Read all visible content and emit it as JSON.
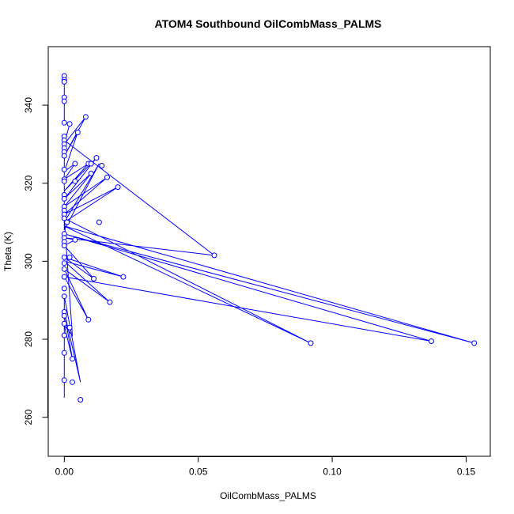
{
  "chart_data": {
    "type": "line",
    "title": "ATOM4 Southbound OilCombMass_PALMS",
    "xlabel": "OilCombMass_PALMS",
    "ylabel": "Theta (K)",
    "xlim": [
      -0.006,
      0.159
    ],
    "ylim": [
      250,
      355
    ],
    "x_ticks": [
      0.0,
      0.05,
      0.1,
      0.15
    ],
    "x_tick_labels": [
      "0.00",
      "0.05",
      "0.10",
      "0.15"
    ],
    "y_ticks": [
      260,
      280,
      300,
      320,
      340
    ],
    "y_tick_labels": [
      "260",
      "280",
      "300",
      "320",
      "340"
    ],
    "grid": false,
    "series_color": "#0000ff",
    "series": [
      {
        "x": [
          0.0,
          0.0,
          0.0,
          0.0,
          0.002,
          0.0,
          0.008,
          0.0,
          0.005,
          0.0,
          0.004,
          0.0,
          0.009,
          0.0,
          0.012,
          0.0,
          0.01,
          0.0,
          0.016,
          0.0,
          0.02,
          0.0,
          0.013,
          0.0,
          0.0,
          0.056,
          0.0,
          0.004,
          0.0,
          0.011,
          0.0,
          0.022,
          0.0,
          0.017,
          0.0,
          0.009,
          0.0,
          0.137,
          0.0,
          0.153,
          0.0,
          0.092,
          0.0,
          0.003,
          0.0,
          0.003,
          0.0,
          0.006,
          0.0,
          0.0,
          0.0
        ],
        "y": [
          347.5,
          346.0,
          342.0,
          335.5,
          335.2,
          330.0,
          337.0,
          327.0,
          333.0,
          323.0,
          325.0,
          321.0,
          325.0,
          318.0,
          326.5,
          316.0,
          322.5,
          314.0,
          321.5,
          312.0,
          319.0,
          310.0,
          325.0,
          308.0,
          331.0,
          301.5,
          306.0,
          305.5,
          304.0,
          295.5,
          301.0,
          296.0,
          300.0,
          289.5,
          298.0,
          285.0,
          296.0,
          279.5,
          307.0,
          279.0,
          309.0,
          279.0,
          311.0,
          281.0,
          283.5,
          275.0,
          287.0,
          269.0,
          291.0,
          269.5,
          265.0
        ]
      }
    ],
    "markers": [
      {
        "x": 0.0,
        "y": 347.5
      },
      {
        "x": 0.0,
        "y": 346.5
      },
      {
        "x": 0.0,
        "y": 346.0
      },
      {
        "x": 0.0,
        "y": 342.0
      },
      {
        "x": 0.0,
        "y": 341.0
      },
      {
        "x": 0.0,
        "y": 335.5
      },
      {
        "x": 0.0,
        "y": 332.0
      },
      {
        "x": 0.0,
        "y": 331.0
      },
      {
        "x": 0.0,
        "y": 330.0
      },
      {
        "x": 0.0,
        "y": 329.0
      },
      {
        "x": 0.0,
        "y": 328.0
      },
      {
        "x": 0.0,
        "y": 327.0
      },
      {
        "x": 0.0,
        "y": 323.5
      },
      {
        "x": 0.0,
        "y": 321.0
      },
      {
        "x": 0.0,
        "y": 320.5
      },
      {
        "x": 0.0,
        "y": 317.0
      },
      {
        "x": 0.0,
        "y": 316.0
      },
      {
        "x": 0.0,
        "y": 314.0
      },
      {
        "x": 0.0,
        "y": 313.0
      },
      {
        "x": 0.0,
        "y": 312.0
      },
      {
        "x": 0.0,
        "y": 311.0
      },
      {
        "x": 0.0,
        "y": 307.0
      },
      {
        "x": 0.0,
        "y": 306.0
      },
      {
        "x": 0.0,
        "y": 305.0
      },
      {
        "x": 0.0,
        "y": 304.0
      },
      {
        "x": 0.0,
        "y": 301.0
      },
      {
        "x": 0.0,
        "y": 299.5
      },
      {
        "x": 0.0,
        "y": 298.0
      },
      {
        "x": 0.0,
        "y": 296.0
      },
      {
        "x": 0.0,
        "y": 293.0
      },
      {
        "x": 0.0,
        "y": 291.0
      },
      {
        "x": 0.0,
        "y": 287.0
      },
      {
        "x": 0.0,
        "y": 286.0
      },
      {
        "x": 0.0,
        "y": 284.0
      },
      {
        "x": 0.0,
        "y": 281.0
      },
      {
        "x": 0.0,
        "y": 276.5
      },
      {
        "x": 0.0,
        "y": 269.5
      },
      {
        "x": 0.002,
        "y": 335.2
      },
      {
        "x": 0.008,
        "y": 337.0
      },
      {
        "x": 0.005,
        "y": 333.0
      },
      {
        "x": 0.004,
        "y": 325.0
      },
      {
        "x": 0.009,
        "y": 325.0
      },
      {
        "x": 0.01,
        "y": 325.0
      },
      {
        "x": 0.012,
        "y": 326.5
      },
      {
        "x": 0.014,
        "y": 324.5
      },
      {
        "x": 0.01,
        "y": 322.5
      },
      {
        "x": 0.016,
        "y": 321.5
      },
      {
        "x": 0.004,
        "y": 320.5
      },
      {
        "x": 0.02,
        "y": 319.0
      },
      {
        "x": 0.013,
        "y": 310.0
      },
      {
        "x": 0.001,
        "y": 310.0
      },
      {
        "x": 0.004,
        "y": 305.5
      },
      {
        "x": 0.056,
        "y": 301.5
      },
      {
        "x": 0.002,
        "y": 301.0
      },
      {
        "x": 0.011,
        "y": 295.5
      },
      {
        "x": 0.022,
        "y": 296.0
      },
      {
        "x": 0.017,
        "y": 289.5
      },
      {
        "x": 0.009,
        "y": 285.0
      },
      {
        "x": 0.002,
        "y": 283.0
      },
      {
        "x": 0.137,
        "y": 279.5
      },
      {
        "x": 0.153,
        "y": 279.0
      },
      {
        "x": 0.092,
        "y": 279.0
      },
      {
        "x": 0.003,
        "y": 275.0
      },
      {
        "x": 0.003,
        "y": 269.0
      },
      {
        "x": 0.006,
        "y": 264.5
      }
    ]
  }
}
